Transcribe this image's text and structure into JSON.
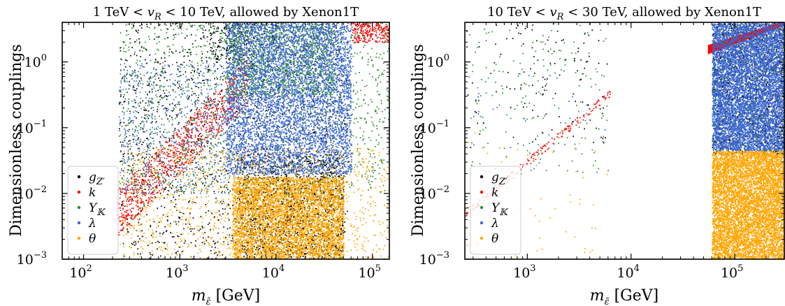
{
  "chart_data": [
    {
      "type": "scatter",
      "title": "1 TeV < v_R < 10 TeV, allowed by Xenon1T",
      "title_parts": [
        "1 TeV < ",
        "v",
        "R",
        " < 10 TeV, allowed by Xenon1T"
      ],
      "xlabel": "m_ε̃ [GeV]",
      "ylabel": "Dimensionless couplings",
      "xscale": "log",
      "yscale": "log",
      "xlim": [
        60,
        150000
      ],
      "ylim": [
        0.001,
        4
      ],
      "xticks": [
        {
          "base": "10",
          "exp": "2",
          "value": 100
        },
        {
          "base": "10",
          "exp": "3",
          "value": 1000
        },
        {
          "base": "10",
          "exp": "4",
          "value": 10000
        },
        {
          "base": "10",
          "exp": "5",
          "value": 100000
        }
      ],
      "yticks": [
        {
          "base": "10",
          "exp": "−3",
          "value": 0.001
        },
        {
          "base": "10",
          "exp": "−2",
          "value": 0.01
        },
        {
          "base": "10",
          "exp": "−1",
          "value": 0.1
        },
        {
          "base": "10",
          "exp": "0",
          "value": 1
        }
      ],
      "legend_position": "lower-left",
      "series": [
        {
          "name": "g_Z'",
          "label_main": "g",
          "label_sub": "Z′",
          "color": "#000000",
          "regions": [
            {
              "x": [
                230,
                55000
              ],
              "y": [
                0.001,
                4
              ],
              "n": 1500
            },
            {
              "x": [
                4000,
                50000
              ],
              "y": [
                0.001,
                0.04
              ],
              "n": 1300
            },
            {
              "x": [
                2000,
                6000
              ],
              "y": [
                1,
                4
              ],
              "n": 150
            }
          ]
        },
        {
          "name": "k",
          "label_main": "k",
          "label_sub": "",
          "color": "#ff0000",
          "trend": {
            "x": [
              220,
              5000
            ],
            "y": [
              0.005,
              0.5
            ],
            "n": 900,
            "scatter": 0.35
          },
          "regions": [
            {
              "x": [
                60000,
                150000
              ],
              "y": [
                2,
                4
              ],
              "n": 250
            }
          ]
        },
        {
          "name": "Y_K",
          "label_main": "Y",
          "label_sub": "𝕂",
          "color": "#2e8b2e",
          "regions": [
            {
              "x": [
                230,
                150000
              ],
              "y": [
                0.01,
                4
              ],
              "n": 1600
            },
            {
              "x": [
                3000,
                40000
              ],
              "y": [
                0.3,
                4
              ],
              "n": 1400
            }
          ]
        },
        {
          "name": "λ",
          "label_main": "λ",
          "label_sub": "",
          "color": "#3a66d6",
          "regions": [
            {
              "x": [
                3000,
                60000
              ],
              "y": [
                0.02,
                4
              ],
              "n": 5500
            },
            {
              "x": [
                230,
                3000
              ],
              "y": [
                0.01,
                1
              ],
              "n": 600
            }
          ]
        },
        {
          "name": "θ",
          "label_main": "θ",
          "label_sub": "",
          "color": "#ffa500",
          "regions": [
            {
              "x": [
                3500,
                50000
              ],
              "y": [
                0.001,
                0.018
              ],
              "n": 5000
            },
            {
              "x": [
                230,
                150000
              ],
              "y": [
                0.001,
                0.05
              ],
              "n": 1200
            }
          ]
        }
      ]
    },
    {
      "type": "scatter",
      "title": "10 TeV < v_R < 30 TeV, allowed by Xenon1T",
      "title_parts": [
        "10 TeV < ",
        "v",
        "R",
        " < 30 TeV, allowed by Xenon1T"
      ],
      "xlabel": "m_ε̃ [GeV]",
      "ylabel": "Dimensionless couplings",
      "xscale": "log",
      "yscale": "log",
      "xlim": [
        250,
        300000
      ],
      "ylim": [
        0.001,
        4
      ],
      "xticks": [
        {
          "base": "10",
          "exp": "3",
          "value": 1000
        },
        {
          "base": "10",
          "exp": "4",
          "value": 10000
        },
        {
          "base": "10",
          "exp": "5",
          "value": 100000
        }
      ],
      "yticks": [
        {
          "base": "10",
          "exp": "−3",
          "value": 0.001
        },
        {
          "base": "10",
          "exp": "−2",
          "value": 0.01
        },
        {
          "base": "10",
          "exp": "−1",
          "value": 0.1
        },
        {
          "base": "10",
          "exp": "0",
          "value": 1
        }
      ],
      "legend_position": "lower-left",
      "series": [
        {
          "name": "g_Z'",
          "label_main": "g",
          "label_sub": "Z′",
          "color": "#000000",
          "regions": [
            {
              "x": [
                250,
                6000
              ],
              "y": [
                0.05,
                4
              ],
              "n": 120
            },
            {
              "x": [
                60000,
                300000
              ],
              "y": [
                0.04,
                4
              ],
              "n": 1400
            }
          ]
        },
        {
          "name": "k",
          "label_main": "k",
          "label_sub": "",
          "color": "#ff0000",
          "trend": {
            "x": [
              250,
              6500
            ],
            "y": [
              0.005,
              0.35
            ],
            "n": 180,
            "scatter": 0.06
          },
          "wedge": {
            "x": [
              55000,
              300000
            ],
            "y_low": [
              1.3,
              3.6
            ],
            "y_high": [
              1.8,
              4.2
            ]
          }
        },
        {
          "name": "Y_K",
          "label_main": "Y",
          "label_sub": "𝕂",
          "color": "#2e8b2e",
          "regions": [
            {
              "x": [
                250,
                6000
              ],
              "y": [
                0.02,
                4
              ],
              "n": 180
            },
            {
              "x": [
                60000,
                300000
              ],
              "y": [
                0.04,
                4
              ],
              "n": 700
            }
          ]
        },
        {
          "name": "λ",
          "label_main": "λ",
          "label_sub": "",
          "color": "#3a66d6",
          "regions": [
            {
              "x": [
                60000,
                300000
              ],
              "y": [
                0.045,
                4
              ],
              "n": 7000
            },
            {
              "x": [
                250,
                6000
              ],
              "y": [
                0.02,
                1
              ],
              "n": 40
            }
          ]
        },
        {
          "name": "θ",
          "label_main": "θ",
          "label_sub": "",
          "color": "#ffa500",
          "regions": [
            {
              "x": [
                60000,
                300000
              ],
              "y": [
                0.001,
                0.045
              ],
              "n": 7000
            },
            {
              "x": [
                250,
                6000
              ],
              "y": [
                0.001,
                0.1
              ],
              "n": 60
            }
          ]
        }
      ]
    }
  ]
}
